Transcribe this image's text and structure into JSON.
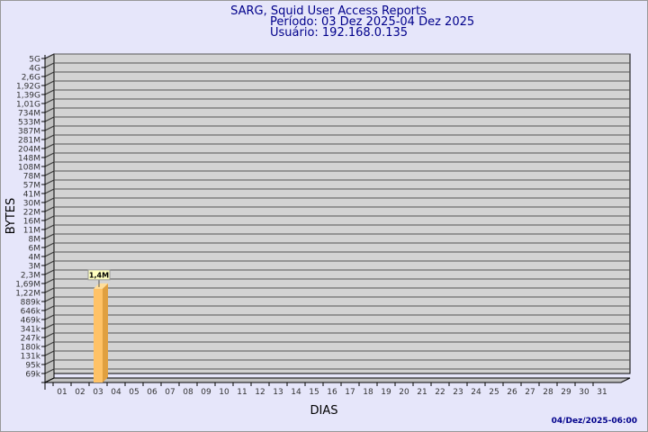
{
  "chart_data": {
    "type": "bar",
    "title": "SARG, Squid User Access Reports",
    "subtitle_period": "Período: 03 Dez 2025-04 Dez 2025",
    "subtitle_user": "Usuário: 192.168.0.135",
    "xlabel": "DIAS",
    "ylabel": "BYTES",
    "y_scale": "log",
    "y_tick_labels": [
      "5G",
      "4G",
      "2,6G",
      "1,92G",
      "1,39G",
      "1,01G",
      "734M",
      "533M",
      "387M",
      "281M",
      "204M",
      "148M",
      "108M",
      "78M",
      "57M",
      "41M",
      "30M",
      "22M",
      "16M",
      "11M",
      "8M",
      "6M",
      "4M",
      "3M",
      "2,3M",
      "1,69M",
      "1,22M",
      "889k",
      "646k",
      "469k",
      "341k",
      "247k",
      "180k",
      "131k",
      "95k",
      "69k"
    ],
    "y_range": [
      69000,
      5000000000
    ],
    "categories": [
      "01",
      "02",
      "03",
      "04",
      "05",
      "06",
      "07",
      "08",
      "09",
      "10",
      "11",
      "12",
      "13",
      "14",
      "15",
      "16",
      "17",
      "18",
      "19",
      "20",
      "21",
      "22",
      "23",
      "24",
      "25",
      "26",
      "27",
      "28",
      "29",
      "30",
      "31"
    ],
    "bars": [
      {
        "category": "03",
        "value": 1400000,
        "label": "1,4M"
      }
    ],
    "grid": true,
    "footer": "04/Dez/2025-06:00",
    "colors": {
      "background": "#e6e6fa",
      "title": "#00008b",
      "wall": "#d3d3d3",
      "side_wall": "#c0c0c0",
      "bar_front": "#ffc266",
      "bar_side": "#e0a040",
      "bar_top": "#ffdd99",
      "label_bg": "#ffffc0"
    }
  }
}
